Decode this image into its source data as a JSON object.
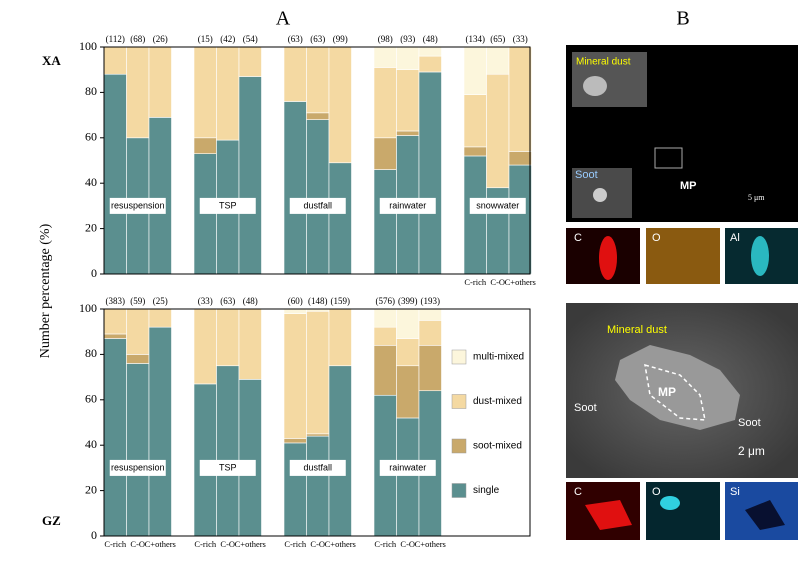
{
  "panel_labels": [
    "A",
    "B"
  ],
  "chart_data": [
    {
      "type": "bar",
      "stacked": true,
      "subtitle": "XA",
      "ylabel": "Number percentage (%)",
      "groups": [
        "resuspension",
        "TSP",
        "dustfall",
        "rainwater",
        "snowwater"
      ],
      "categories": [
        null,
        null,
        null,
        null,
        null,
        null,
        null,
        null,
        null,
        null,
        null,
        null,
        "C-rich",
        "C-O",
        "C+others"
      ],
      "n_labels": [
        "(112)",
        "(68)",
        "(26)",
        "(15)",
        "(42)",
        "(54)",
        "(63)",
        "(63)",
        "(99)",
        "(98)",
        "(93)",
        "(48)",
        "(134)",
        "(65)",
        "(33)"
      ],
      "series": [
        {
          "color": "#5b8f8f",
          "values": [
            88,
            60,
            69,
            53,
            59,
            87,
            76,
            68,
            49,
            46,
            61,
            89,
            52,
            38,
            48
          ]
        },
        {
          "color": "#c9a96b",
          "values": [
            0,
            0,
            0,
            7,
            0,
            0,
            0,
            3,
            0,
            14,
            2,
            0,
            4,
            0,
            6
          ]
        },
        {
          "color": "#f4d9a2",
          "values": [
            12,
            40,
            31,
            40,
            41,
            13,
            24,
            29,
            51,
            31,
            27,
            7,
            23,
            50,
            46
          ]
        },
        {
          "color": "#fcf6dc",
          "values": [
            0,
            0,
            0,
            0,
            0,
            0,
            0,
            0,
            0,
            9,
            10,
            4,
            21,
            12,
            0
          ]
        }
      ],
      "ylim": [
        0,
        100
      ],
      "yticks": [
        0,
        20,
        40,
        60,
        80,
        100
      ]
    },
    {
      "type": "bar",
      "stacked": true,
      "subtitle": "GZ",
      "groups": [
        "resuspension",
        "TSP",
        "dustfall",
        "rainwater"
      ],
      "categories": [
        "C-rich",
        "C-O",
        "C+others",
        "C-rich",
        "C-O",
        "C+others",
        "C-rich",
        "C-O",
        "C+others",
        "C-rich",
        "C-O",
        "C+others"
      ],
      "n_labels": [
        "(383)",
        "(59)",
        "(25)",
        "(33)",
        "(63)",
        "(48)",
        "(60)",
        "(148)",
        "(159)",
        "(576)",
        "(399)",
        "(193)"
      ],
      "series": [
        {
          "name": "single",
          "color": "#5b8f8f",
          "values": [
            87,
            76,
            92,
            67,
            75,
            69,
            41,
            44,
            75,
            62,
            52,
            64
          ]
        },
        {
          "name": "soot-mixed",
          "color": "#c9a96b",
          "values": [
            2,
            4,
            0,
            0,
            0,
            0,
            2,
            1,
            0,
            22,
            23,
            20
          ]
        },
        {
          "name": "dust-mixed",
          "color": "#f4d9a2",
          "values": [
            11,
            20,
            8,
            33,
            25,
            31,
            55,
            54,
            25,
            8,
            12,
            11
          ]
        },
        {
          "name": "multi-mixed",
          "color": "#fcf6dc",
          "values": [
            0,
            0,
            0,
            0,
            0,
            0,
            2,
            1,
            0,
            8,
            13,
            5
          ]
        }
      ],
      "ylim": [
        0,
        100
      ],
      "yticks": [
        0,
        20,
        40,
        60,
        80,
        100
      ]
    }
  ],
  "panel_b": {
    "image1": [
      "Mineral dust",
      "Soot",
      "MP",
      "5 μm"
    ],
    "maps1": [
      "C",
      "O",
      "Al"
    ],
    "image2": [
      "Mineral dust",
      "MP",
      "Soot",
      "Soot",
      "2 μm"
    ],
    "maps2": [
      "C",
      "O",
      "Si"
    ]
  }
}
